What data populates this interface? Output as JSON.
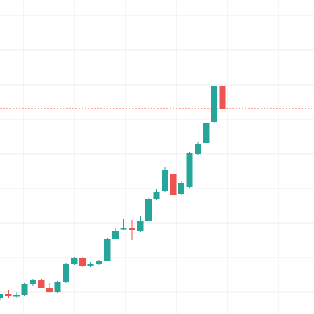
{
  "chart_data": {
    "type": "candlestick",
    "ylim": [
      0,
      400
    ],
    "grid": true,
    "colors": {
      "up": "#26a69a",
      "down": "#ef5350",
      "grid": "#e9ecef",
      "price_line": "#ef5350"
    },
    "price_line": 262,
    "ohlc": [
      {
        "o": 21,
        "h": 26,
        "l": 18,
        "c": 25
      },
      {
        "o": 25,
        "h": 30,
        "l": 20,
        "c": 23
      },
      {
        "o": 23,
        "h": 28,
        "l": 20,
        "c": 24
      },
      {
        "o": 24,
        "h": 39,
        "l": 23,
        "c": 38
      },
      {
        "o": 38,
        "h": 45,
        "l": 36,
        "c": 43
      },
      {
        "o": 43,
        "h": 44,
        "l": 33,
        "c": 33
      },
      {
        "o": 33,
        "h": 40,
        "l": 27,
        "c": 28
      },
      {
        "o": 28,
        "h": 42,
        "l": 27,
        "c": 41
      },
      {
        "o": 41,
        "h": 65,
        "l": 40,
        "c": 64
      },
      {
        "o": 64,
        "h": 73,
        "l": 63,
        "c": 71
      },
      {
        "o": 71,
        "h": 72,
        "l": 60,
        "c": 61
      },
      {
        "o": 61,
        "h": 66,
        "l": 60,
        "c": 64
      },
      {
        "o": 64,
        "h": 69,
        "l": 63,
        "c": 68
      },
      {
        "o": 68,
        "h": 97,
        "l": 67,
        "c": 96
      },
      {
        "o": 96,
        "h": 109,
        "l": 95,
        "c": 106
      },
      {
        "o": 108,
        "h": 121,
        "l": 107,
        "c": 109
      },
      {
        "o": 109,
        "h": 120,
        "l": 94,
        "c": 107
      },
      {
        "o": 106,
        "h": 125,
        "l": 105,
        "c": 119
      },
      {
        "o": 119,
        "h": 148,
        "l": 118,
        "c": 146
      },
      {
        "o": 146,
        "h": 159,
        "l": 145,
        "c": 155
      },
      {
        "o": 157,
        "h": 187,
        "l": 156,
        "c": 184
      },
      {
        "o": 178,
        "h": 181,
        "l": 142,
        "c": 152
      },
      {
        "o": 153,
        "h": 169,
        "l": 151,
        "c": 167
      },
      {
        "o": 162,
        "h": 207,
        "l": 161,
        "c": 205
      },
      {
        "o": 204,
        "h": 219,
        "l": 203,
        "c": 217
      },
      {
        "o": 218,
        "h": 245,
        "l": 217,
        "c": 243
      },
      {
        "o": 244,
        "h": 291,
        "l": 243,
        "c": 290
      },
      {
        "o": 290,
        "h": 291,
        "l": 261,
        "c": 261
      }
    ]
  }
}
